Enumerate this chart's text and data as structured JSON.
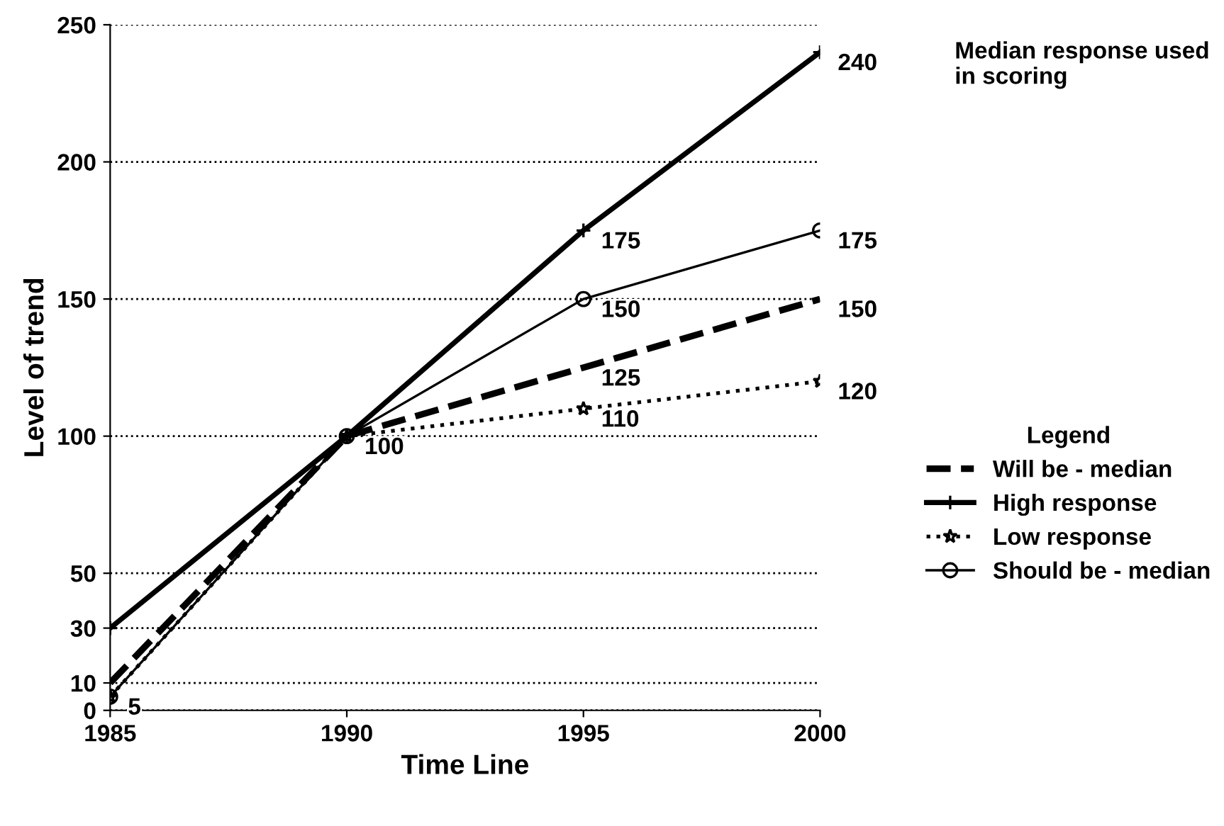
{
  "chart_data": {
    "type": "line",
    "xlabel": "Time Line",
    "ylabel": "Level of trend",
    "legend_title": "Legend",
    "legend": "right",
    "x": [
      1985,
      1990,
      1995,
      2000
    ],
    "xlim": [
      1985,
      2000
    ],
    "xticks": [
      1985,
      1990,
      1995,
      2000
    ],
    "ylim": [
      0,
      250
    ],
    "yticks": [
      0,
      10,
      30,
      50,
      100,
      150,
      200,
      250
    ],
    "grid": "y",
    "annotations": [
      "Median response used in scoring"
    ],
    "series": [
      {
        "name": "Will be - median",
        "color": "#000000",
        "line_style": "dashed",
        "marker": "none",
        "values": [
          10,
          100,
          125,
          150
        ],
        "value_labels": [
          null,
          null,
          "125",
          "150"
        ]
      },
      {
        "name": "High response",
        "color": "#000000",
        "line_style": "solid",
        "marker": "cross",
        "values": [
          30,
          100,
          175,
          240
        ],
        "value_labels": [
          null,
          null,
          "175",
          "240"
        ]
      },
      {
        "name": "Low response",
        "color": "#000000",
        "line_style": "dotted",
        "marker": "star",
        "values": [
          5,
          100,
          110,
          120
        ],
        "value_labels": [
          "5",
          "100",
          "110",
          "120"
        ]
      },
      {
        "name": "Should be - median",
        "color": "#000000",
        "line_style": "solid",
        "marker": "circle",
        "values": [
          5,
          100,
          150,
          175
        ],
        "value_labels": [
          null,
          null,
          "150",
          "175"
        ]
      }
    ]
  }
}
